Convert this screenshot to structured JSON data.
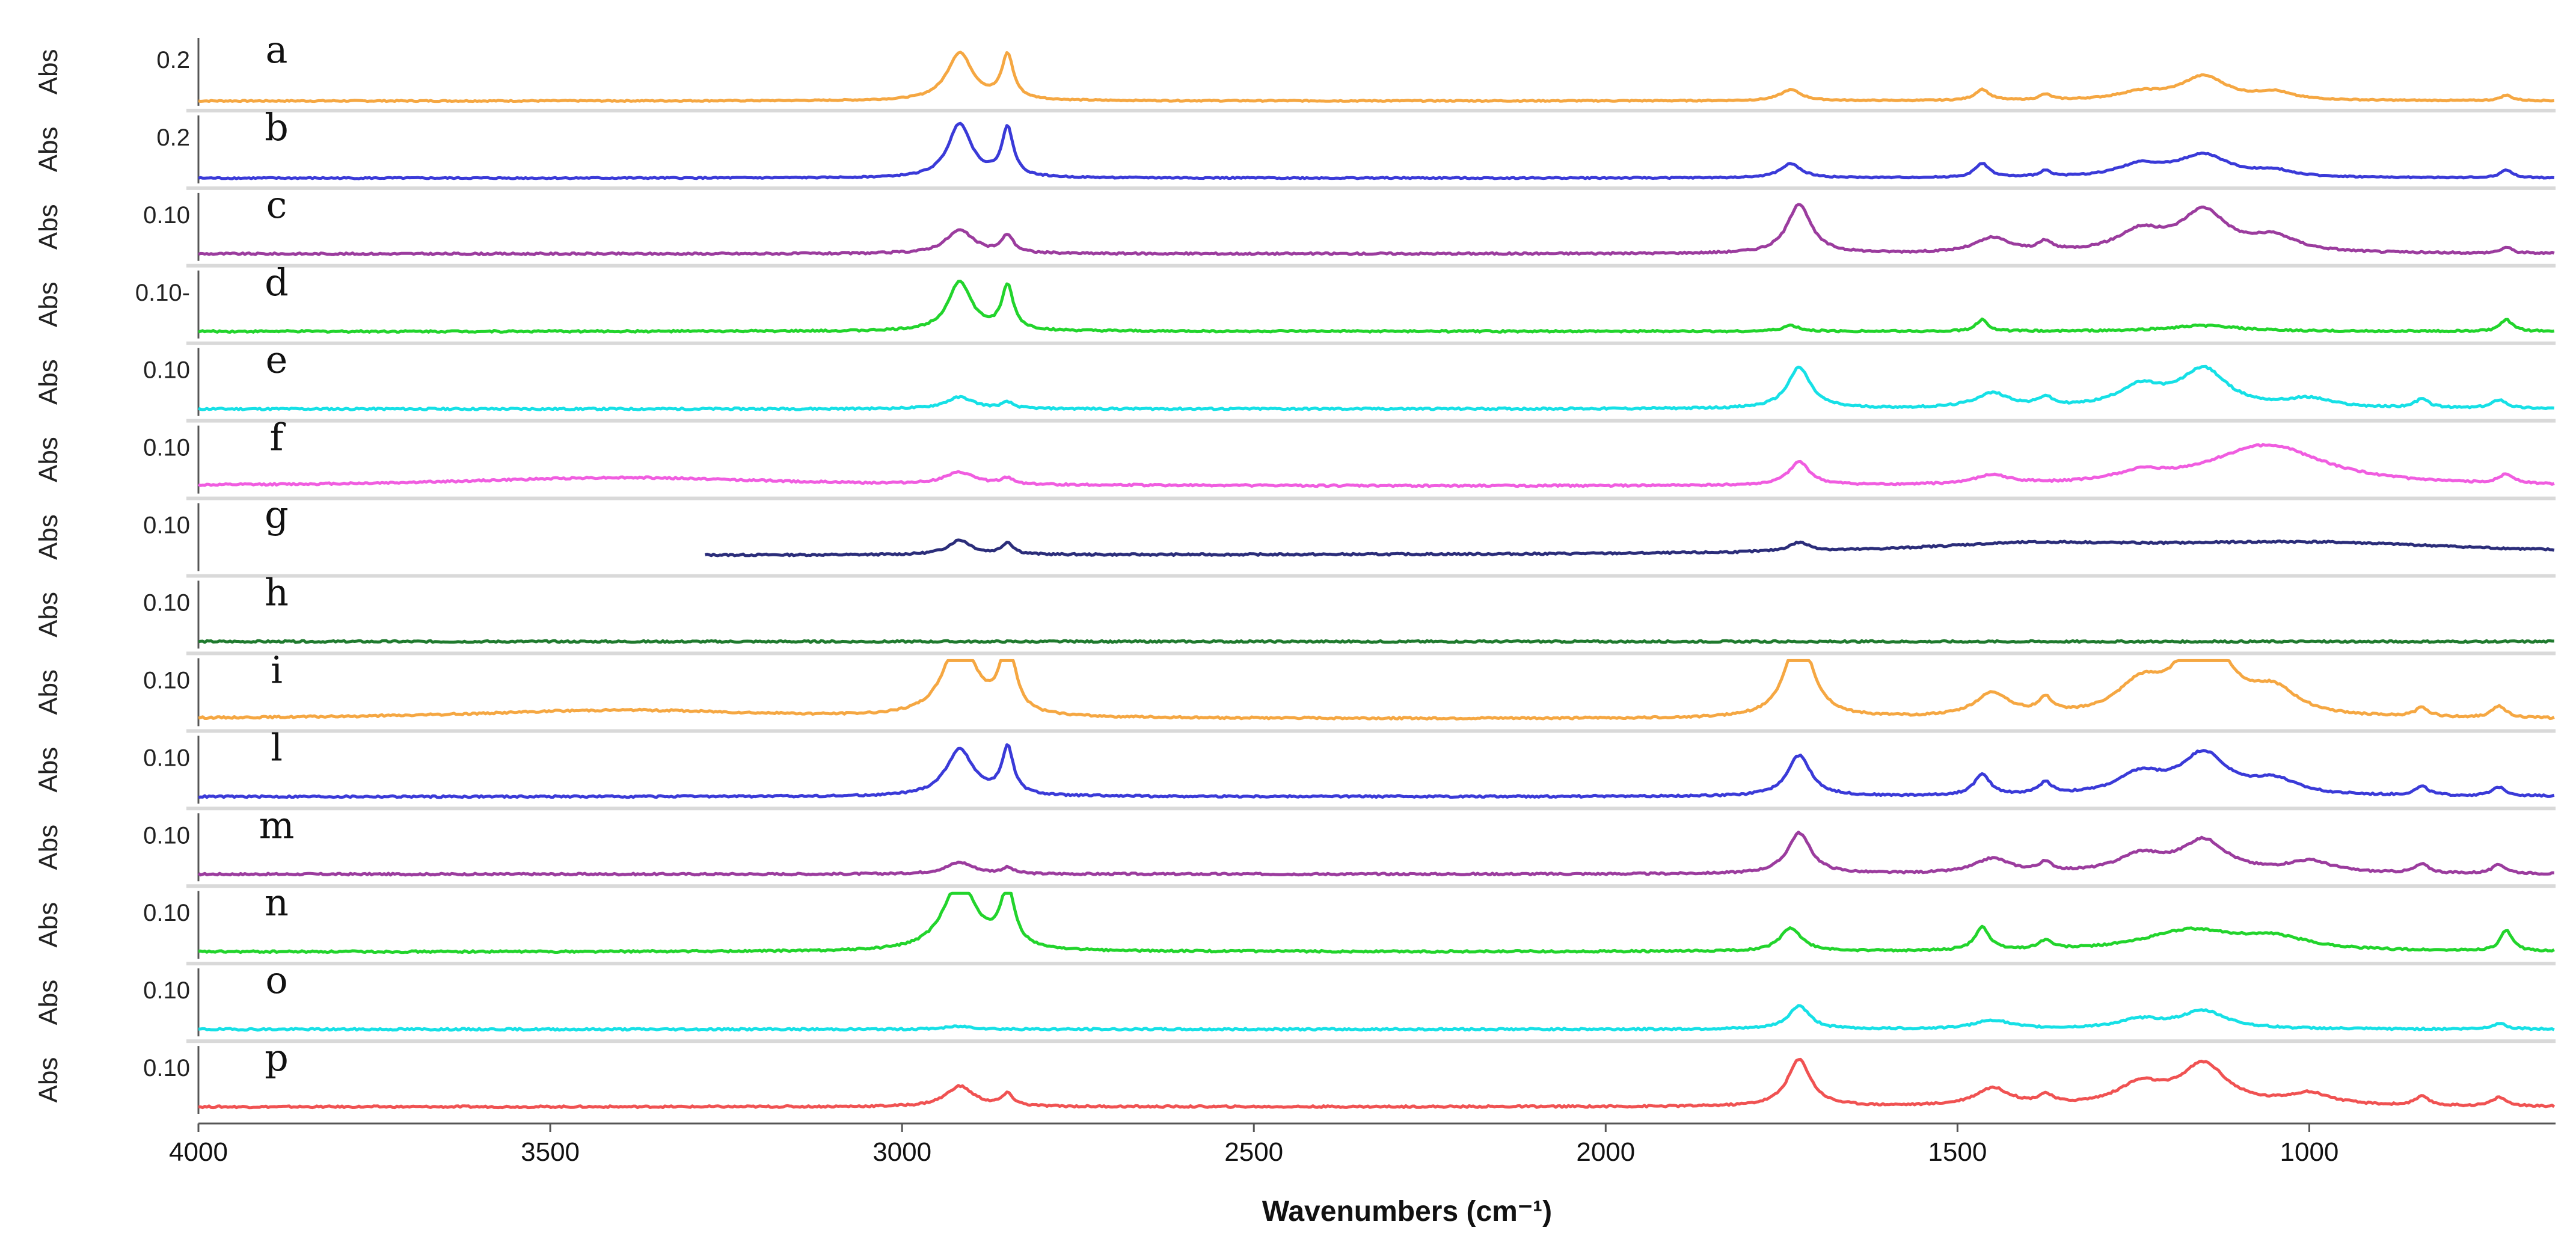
{
  "chart_data": {
    "type": "line",
    "title": "",
    "xlabel": "Wavenumbers (cm",
    "xlabel_unit_suffix": "⁻¹)",
    "ylabel": "Abs",
    "xlim": [
      4000,
      650
    ],
    "x_ticks": [
      4000,
      3500,
      3000,
      2500,
      2000,
      1500,
      1000
    ],
    "series": [
      {
        "name": "a",
        "color": "#f5a742",
        "scale_label": "0.2",
        "ymax": 0.35,
        "baseline": 0.02,
        "peaks": [
          [
            2918,
            0.26,
            22
          ],
          [
            2850,
            0.24,
            10
          ],
          [
            1737,
            0.06,
            18
          ],
          [
            1465,
            0.06,
            12
          ],
          [
            1375,
            0.03,
            10
          ],
          [
            1240,
            0.04,
            40
          ],
          [
            1150,
            0.13,
            40
          ],
          [
            1050,
            0.04,
            30
          ],
          [
            720,
            0.03,
            10
          ]
        ]
      },
      {
        "name": "b",
        "color": "#3a3ad8",
        "scale_label": "0.2",
        "ymax": 0.32,
        "baseline": 0.02,
        "peaks": [
          [
            2918,
            0.27,
            20
          ],
          [
            2850,
            0.24,
            10
          ],
          [
            1737,
            0.07,
            18
          ],
          [
            1465,
            0.07,
            12
          ],
          [
            1375,
            0.03,
            10
          ],
          [
            1240,
            0.06,
            40
          ],
          [
            1150,
            0.11,
            45
          ],
          [
            1050,
            0.03,
            30
          ],
          [
            720,
            0.04,
            10
          ]
        ]
      },
      {
        "name": "c",
        "color": "#9b3c9e",
        "scale_label": "0.10",
        "ymax": 0.22,
        "baseline": 0.02,
        "peaks": [
          [
            2918,
            0.08,
            24
          ],
          [
            2850,
            0.06,
            10
          ],
          [
            1725,
            0.17,
            20
          ],
          [
            1450,
            0.05,
            30
          ],
          [
            1375,
            0.03,
            12
          ],
          [
            1240,
            0.07,
            40
          ],
          [
            1150,
            0.14,
            40
          ],
          [
            1050,
            0.05,
            40
          ],
          [
            720,
            0.02,
            10
          ]
        ]
      },
      {
        "name": "d",
        "color": "#22d42c",
        "scale_label": "0.10-",
        "ymax": 0.22,
        "baseline": 0.02,
        "peaks": [
          [
            2918,
            0.17,
            20
          ],
          [
            2850,
            0.15,
            10
          ],
          [
            1737,
            0.02,
            14
          ],
          [
            1465,
            0.04,
            10
          ],
          [
            1150,
            0.02,
            60
          ],
          [
            720,
            0.04,
            10
          ]
        ]
      },
      {
        "name": "e",
        "color": "#16e0e6",
        "scale_label": "0.10",
        "ymax": 0.22,
        "baseline": 0.02,
        "peaks": [
          [
            2918,
            0.04,
            24
          ],
          [
            2850,
            0.02,
            10
          ],
          [
            1725,
            0.14,
            20
          ],
          [
            1450,
            0.05,
            30
          ],
          [
            1375,
            0.03,
            12
          ],
          [
            1240,
            0.07,
            40
          ],
          [
            1150,
            0.13,
            40
          ],
          [
            1000,
            0.03,
            40
          ],
          [
            840,
            0.03,
            12
          ],
          [
            730,
            0.03,
            12
          ]
        ]
      },
      {
        "name": "f",
        "color": "#f05de0",
        "scale_label": "0.10",
        "ymax": 0.22,
        "baseline": 0.02,
        "peaks": [
          [
            3400,
            0.03,
            280
          ],
          [
            2918,
            0.04,
            26
          ],
          [
            2850,
            0.02,
            10
          ],
          [
            1725,
            0.08,
            18
          ],
          [
            1450,
            0.03,
            30
          ],
          [
            1240,
            0.03,
            40
          ],
          [
            1060,
            0.14,
            100
          ],
          [
            720,
            0.03,
            14
          ]
        ]
      },
      {
        "name": "g",
        "color": "#2b2d7a",
        "scale_label": "0.10",
        "ymax": 0.22,
        "baseline": 0.05,
        "x_start": 3280,
        "peaks": [
          [
            2918,
            0.05,
            20
          ],
          [
            2850,
            0.04,
            10
          ],
          [
            1725,
            0.03,
            18
          ],
          [
            1400,
            0.03,
            200
          ],
          [
            1000,
            0.04,
            300
          ]
        ]
      },
      {
        "name": "h",
        "color": "#1f7a2e",
        "scale_label": "0.10",
        "ymax": 0.22,
        "baseline": 0.02,
        "peaks": []
      },
      {
        "name": "i",
        "color": "#f5a742",
        "scale_label": "0.10",
        "ymax": 0.22,
        "baseline": 0.02,
        "peaks": [
          [
            3400,
            0.03,
            260
          ],
          [
            2918,
            0.28,
            26
          ],
          [
            2850,
            0.26,
            12
          ],
          [
            1725,
            0.3,
            22
          ],
          [
            1450,
            0.08,
            30
          ],
          [
            1375,
            0.05,
            12
          ],
          [
            1240,
            0.1,
            40
          ],
          [
            1150,
            0.3,
            40
          ],
          [
            1050,
            0.08,
            40
          ],
          [
            840,
            0.03,
            12
          ],
          [
            730,
            0.04,
            12
          ]
        ]
      },
      {
        "name": "l",
        "color": "#3a3ad8",
        "scale_label": "0.10",
        "ymax": 0.22,
        "baseline": 0.02,
        "peaks": [
          [
            2918,
            0.16,
            24
          ],
          [
            2850,
            0.16,
            10
          ],
          [
            1725,
            0.14,
            20
          ],
          [
            1465,
            0.07,
            14
          ],
          [
            1375,
            0.04,
            12
          ],
          [
            1240,
            0.07,
            40
          ],
          [
            1150,
            0.14,
            40
          ],
          [
            1050,
            0.05,
            40
          ],
          [
            840,
            0.03,
            12
          ],
          [
            730,
            0.03,
            12
          ]
        ]
      },
      {
        "name": "m",
        "color": "#9b3c9e",
        "scale_label": "0.10",
        "ymax": 0.22,
        "baseline": 0.02,
        "peaks": [
          [
            2918,
            0.04,
            24
          ],
          [
            2850,
            0.02,
            10
          ],
          [
            1725,
            0.14,
            20
          ],
          [
            1450,
            0.05,
            30
          ],
          [
            1375,
            0.03,
            12
          ],
          [
            1240,
            0.06,
            40
          ],
          [
            1150,
            0.11,
            40
          ],
          [
            1000,
            0.04,
            40
          ],
          [
            840,
            0.03,
            12
          ],
          [
            730,
            0.03,
            12
          ]
        ]
      },
      {
        "name": "n",
        "color": "#22d42c",
        "scale_label": "0.10",
        "ymax": 0.22,
        "baseline": 0.02,
        "peaks": [
          [
            2918,
            0.24,
            28
          ],
          [
            2850,
            0.2,
            12
          ],
          [
            1737,
            0.08,
            18
          ],
          [
            1465,
            0.08,
            12
          ],
          [
            1375,
            0.03,
            12
          ],
          [
            1170,
            0.07,
            80
          ],
          [
            1050,
            0.04,
            60
          ],
          [
            720,
            0.07,
            10
          ]
        ]
      },
      {
        "name": "o",
        "color": "#16e0e6",
        "scale_label": "0.10",
        "ymax": 0.22,
        "baseline": 0.02,
        "peaks": [
          [
            2918,
            0.01,
            24
          ],
          [
            1725,
            0.08,
            18
          ],
          [
            1450,
            0.03,
            30
          ],
          [
            1240,
            0.03,
            40
          ],
          [
            1150,
            0.06,
            40
          ],
          [
            730,
            0.02,
            12
          ]
        ]
      },
      {
        "name": "p",
        "color": "#f05252",
        "scale_label": "0.10",
        "ymax": 0.22,
        "baseline": 0.02,
        "peaks": [
          [
            2918,
            0.07,
            24
          ],
          [
            2850,
            0.04,
            10
          ],
          [
            1725,
            0.16,
            20
          ],
          [
            1450,
            0.06,
            30
          ],
          [
            1375,
            0.03,
            12
          ],
          [
            1240,
            0.07,
            40
          ],
          [
            1150,
            0.14,
            40
          ],
          [
            1000,
            0.04,
            40
          ],
          [
            840,
            0.03,
            12
          ],
          [
            730,
            0.03,
            12
          ]
        ]
      }
    ]
  }
}
